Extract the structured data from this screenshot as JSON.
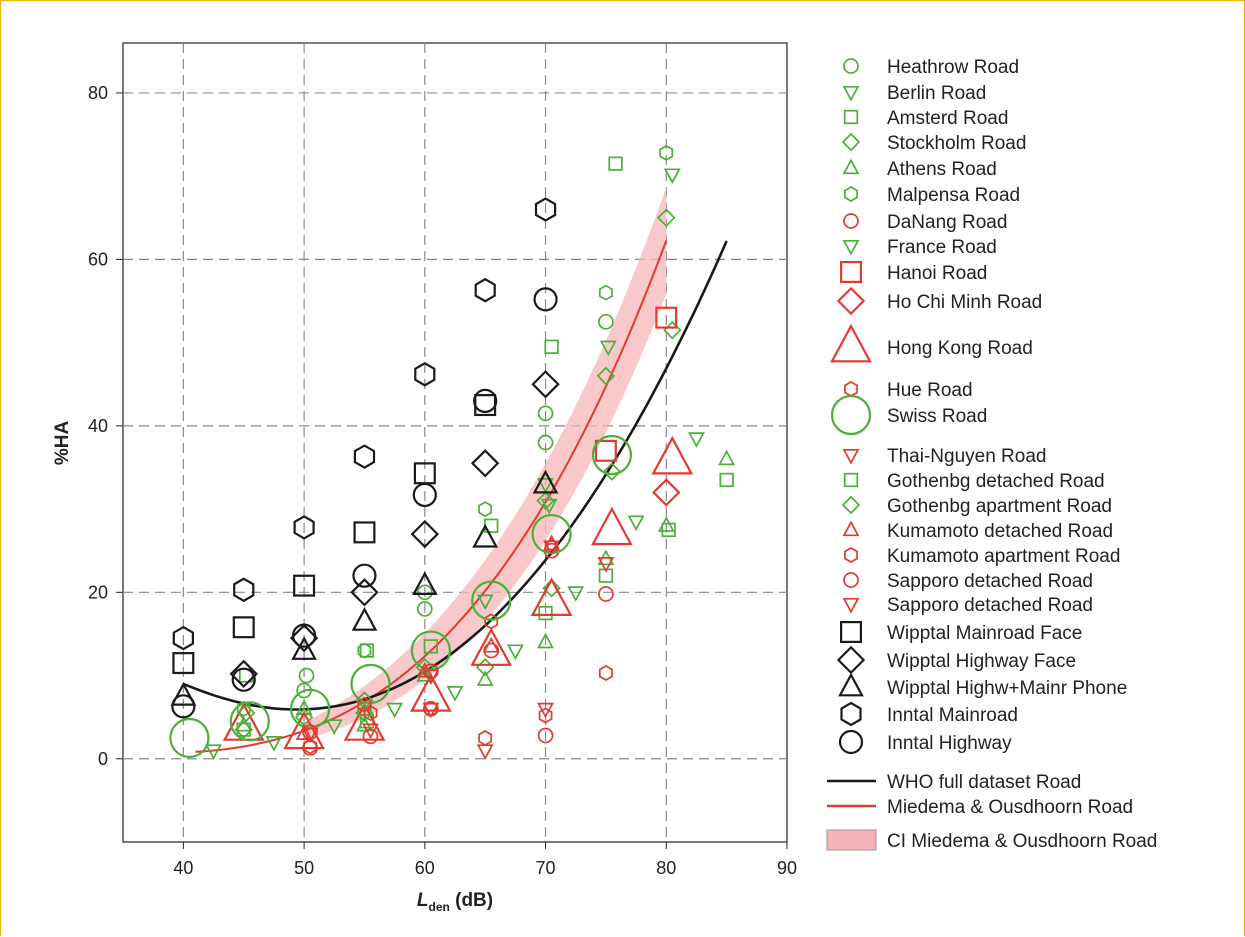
{
  "colors": {
    "green": "#4caf3a",
    "red": "#e03b2e",
    "black": "#1a1a1a",
    "band": "#f5b5b8",
    "grid": "#8a8a8a",
    "frame": "#f0b400"
  },
  "chart_data": {
    "type": "scatter",
    "xlabel_main": "L",
    "xlabel_sub": "den",
    "xlabel_unit": " (dB)",
    "ylabel": "%HA",
    "xlim": [
      35,
      90
    ],
    "ylim": [
      -10,
      86
    ],
    "xticks": [
      40,
      50,
      60,
      70,
      80,
      90
    ],
    "yticks": [
      0,
      20,
      40,
      60,
      80
    ],
    "grid": true,
    "legend_position": "right",
    "series": [
      {
        "name": "Heathrow Road",
        "marker": "circle",
        "color": "green",
        "size": "small",
        "points": [
          [
            50.2,
            10
          ],
          [
            50,
            8.2
          ],
          [
            60,
            18
          ],
          [
            60,
            20
          ],
          [
            70,
            41.5
          ],
          [
            70,
            38
          ],
          [
            75,
            52.5
          ]
        ]
      },
      {
        "name": "Berlin Road",
        "marker": "tri-down",
        "color": "green",
        "size": "small",
        "points": [
          [
            42.5,
            1
          ],
          [
            47.5,
            2
          ],
          [
            52.5,
            4
          ],
          [
            57.5,
            6
          ],
          [
            62.5,
            8
          ],
          [
            67.5,
            13
          ],
          [
            72.5,
            20
          ],
          [
            77.5,
            28.5
          ],
          [
            82.5,
            38.5
          ],
          [
            75.2,
            49.5
          ],
          [
            70,
            33
          ],
          [
            80.5,
            70.2
          ]
        ]
      },
      {
        "name": "Amsterd Road",
        "marker": "square",
        "color": "green",
        "size": "small",
        "points": [
          [
            45,
            3.5
          ],
          [
            55,
            6
          ],
          [
            60.5,
            13.5
          ],
          [
            65.5,
            28
          ],
          [
            70.5,
            49.5
          ],
          [
            75.8,
            71.5
          ],
          [
            85,
            33.5
          ],
          [
            80.2,
            27.5
          ],
          [
            75,
            22
          ],
          [
            70,
            17.5
          ],
          [
            55.2,
            4.5
          ]
        ]
      },
      {
        "name": "Stockholm Road",
        "marker": "diamond",
        "color": "green",
        "size": "small",
        "points": [
          [
            45,
            3.5
          ],
          [
            50,
            5
          ],
          [
            55,
            7
          ],
          [
            60,
            11
          ],
          [
            65,
            11
          ],
          [
            70,
            31
          ],
          [
            75,
            46
          ],
          [
            80,
            65
          ],
          [
            80.5,
            51.5
          ],
          [
            75.5,
            34.5
          ],
          [
            70.5,
            20.5
          ]
        ]
      },
      {
        "name": "Athens Road",
        "marker": "tri-up",
        "color": "green",
        "size": "small",
        "points": [
          [
            45,
            4
          ],
          [
            50,
            6
          ],
          [
            55,
            4
          ],
          [
            60,
            10
          ],
          [
            65,
            9.5
          ],
          [
            70,
            14
          ],
          [
            75,
            24
          ],
          [
            80,
            28
          ],
          [
            85,
            36
          ]
        ]
      },
      {
        "name": "Malpensa Road",
        "marker": "hexagon",
        "color": "green",
        "size": "small",
        "points": [
          [
            45,
            6
          ],
          [
            55,
            13
          ],
          [
            65,
            30
          ],
          [
            75,
            56
          ],
          [
            80,
            72.8
          ]
        ]
      },
      {
        "name": "DaNang Road",
        "marker": "circle",
        "color": "red",
        "size": "small",
        "points": [
          [
            50.5,
            1.3
          ],
          [
            55.5,
            2.7
          ],
          [
            60.5,
            6
          ],
          [
            65.5,
            13
          ],
          [
            70,
            2.8
          ],
          [
            75,
            19.8
          ],
          [
            70.5,
            25
          ]
        ]
      },
      {
        "name": "France Road",
        "marker": "tri-down",
        "color": "green",
        "size": "small",
        "points": [
          [
            65,
            19
          ],
          [
            70.3,
            30.5
          ]
        ]
      },
      {
        "name": "Hanoi Road",
        "marker": "square",
        "color": "red",
        "size": "medium",
        "points": [
          [
            75,
            37
          ],
          [
            80,
            53
          ]
        ]
      },
      {
        "name": "Ho Chi Minh Road",
        "marker": "diamond",
        "color": "red",
        "size": "medium",
        "points": [
          [
            80,
            32
          ]
        ]
      },
      {
        "name": "Hong Kong Road",
        "marker": "tri-up",
        "color": "red",
        "size": "large",
        "points": [
          [
            45,
            4
          ],
          [
            50,
            3
          ],
          [
            55,
            4
          ],
          [
            60.5,
            7.5
          ],
          [
            65.5,
            13
          ],
          [
            70.5,
            19
          ],
          [
            75.5,
            27.5
          ],
          [
            80.5,
            36
          ]
        ]
      },
      {
        "name": "Hue Road",
        "marker": "hexagon",
        "color": "red",
        "size": "small",
        "points": [
          [
            50.5,
            1.5
          ],
          [
            55.5,
            5.5
          ],
          [
            60.5,
            6
          ],
          [
            65,
            2.5
          ],
          [
            65.5,
            16.5
          ],
          [
            70.5,
            25.5
          ],
          [
            75,
            10.3
          ]
        ]
      },
      {
        "name": "Swiss Road",
        "marker": "circle",
        "color": "green",
        "size": "large",
        "points": [
          [
            40.5,
            2.5
          ],
          [
            45.5,
            4.5
          ],
          [
            50.5,
            6
          ],
          [
            55.5,
            9
          ],
          [
            60.5,
            13
          ],
          [
            65.5,
            19
          ],
          [
            70.5,
            27
          ],
          [
            75.5,
            36.5
          ]
        ]
      },
      {
        "name": "Thai-Nguyen Road",
        "marker": "tri-down",
        "color": "red",
        "size": "small",
        "points": [
          [
            50.5,
            3
          ],
          [
            55.5,
            3.5
          ],
          [
            60.5,
            10
          ],
          [
            65,
            1
          ],
          [
            70,
            6
          ],
          [
            75,
            23.5
          ]
        ]
      },
      {
        "name": "Gothenbg detached Road",
        "marker": "square",
        "color": "green",
        "size": "small",
        "points": [
          [
            45.2,
            10
          ],
          [
            55.2,
            13
          ]
        ]
      },
      {
        "name": "Gothenbg apartment Road",
        "marker": "diamond",
        "color": "green",
        "size": "small",
        "points": [
          [
            45.2,
            5.5
          ],
          [
            55,
            5.5
          ]
        ]
      },
      {
        "name": "Kumamoto detached Road",
        "marker": "tri-up",
        "color": "red",
        "size": "small",
        "points": [
          [
            50,
            3
          ],
          [
            60,
            10.5
          ],
          [
            65.5,
            13.5
          ],
          [
            70.5,
            25.8
          ]
        ]
      },
      {
        "name": "Kumamoto apartment Road",
        "marker": "hexagon",
        "color": "red",
        "size": "small",
        "points": [
          [
            55,
            6.5
          ],
          [
            70,
            5.2
          ]
        ]
      },
      {
        "name": "Sapporo detached Road",
        "marker": "circle",
        "color": "red",
        "size": "small",
        "points": [
          [
            50.5,
            3.2
          ],
          [
            60.5,
            10.5
          ]
        ]
      },
      {
        "name": "Sapporo detached Road",
        "marker": "tri-down",
        "color": "red",
        "size": "small",
        "points": [
          [
            60.5,
            6
          ],
          [
            70.5,
            25.5
          ]
        ]
      },
      {
        "name": "Wipptal Mainroad Face",
        "marker": "square",
        "color": "black",
        "size": "medium",
        "points": [
          [
            40,
            11.5
          ],
          [
            45,
            15.8
          ],
          [
            50,
            20.8
          ],
          [
            55,
            27.2
          ],
          [
            60,
            34.3
          ],
          [
            65,
            42.5
          ]
        ]
      },
      {
        "name": "Wipptal Highway Face",
        "marker": "diamond",
        "color": "black",
        "size": "medium",
        "points": [
          [
            45,
            10.2
          ],
          [
            50,
            14.5
          ],
          [
            55,
            20
          ],
          [
            60,
            27
          ],
          [
            65,
            35.5
          ],
          [
            70,
            45
          ]
        ]
      },
      {
        "name": "Wipptal Highw+Mainr Phone",
        "marker": "tri-up",
        "color": "black",
        "size": "medium",
        "points": [
          [
            40,
            7.5
          ],
          [
            50,
            13
          ],
          [
            55,
            16.5
          ],
          [
            60,
            20.8
          ],
          [
            65,
            26.5
          ],
          [
            70,
            33
          ]
        ]
      },
      {
        "name": "Inntal Mainroad",
        "marker": "hexagon",
        "color": "black",
        "size": "medium",
        "points": [
          [
            40,
            14.5
          ],
          [
            45,
            20.3
          ],
          [
            50,
            27.8
          ],
          [
            55,
            36.3
          ],
          [
            60,
            46.2
          ],
          [
            65,
            56.3
          ],
          [
            70,
            66
          ]
        ]
      },
      {
        "name": "Inntal Highway",
        "marker": "circle",
        "color": "black",
        "size": "medium",
        "points": [
          [
            40,
            6.3
          ],
          [
            45,
            9.5
          ],
          [
            50,
            14.8
          ],
          [
            55,
            22
          ],
          [
            60,
            31.7
          ],
          [
            65,
            43
          ],
          [
            70,
            55.2
          ]
        ]
      }
    ],
    "curves": [
      {
        "name": "WHO full dataset Road",
        "type": "line",
        "color": "black"
      },
      {
        "name": "Miedema & Ousdhoorn Road",
        "type": "line",
        "color": "red"
      },
      {
        "name": "CI Miedema & Ousdhoorn Road",
        "type": "band",
        "color": "band"
      }
    ]
  }
}
